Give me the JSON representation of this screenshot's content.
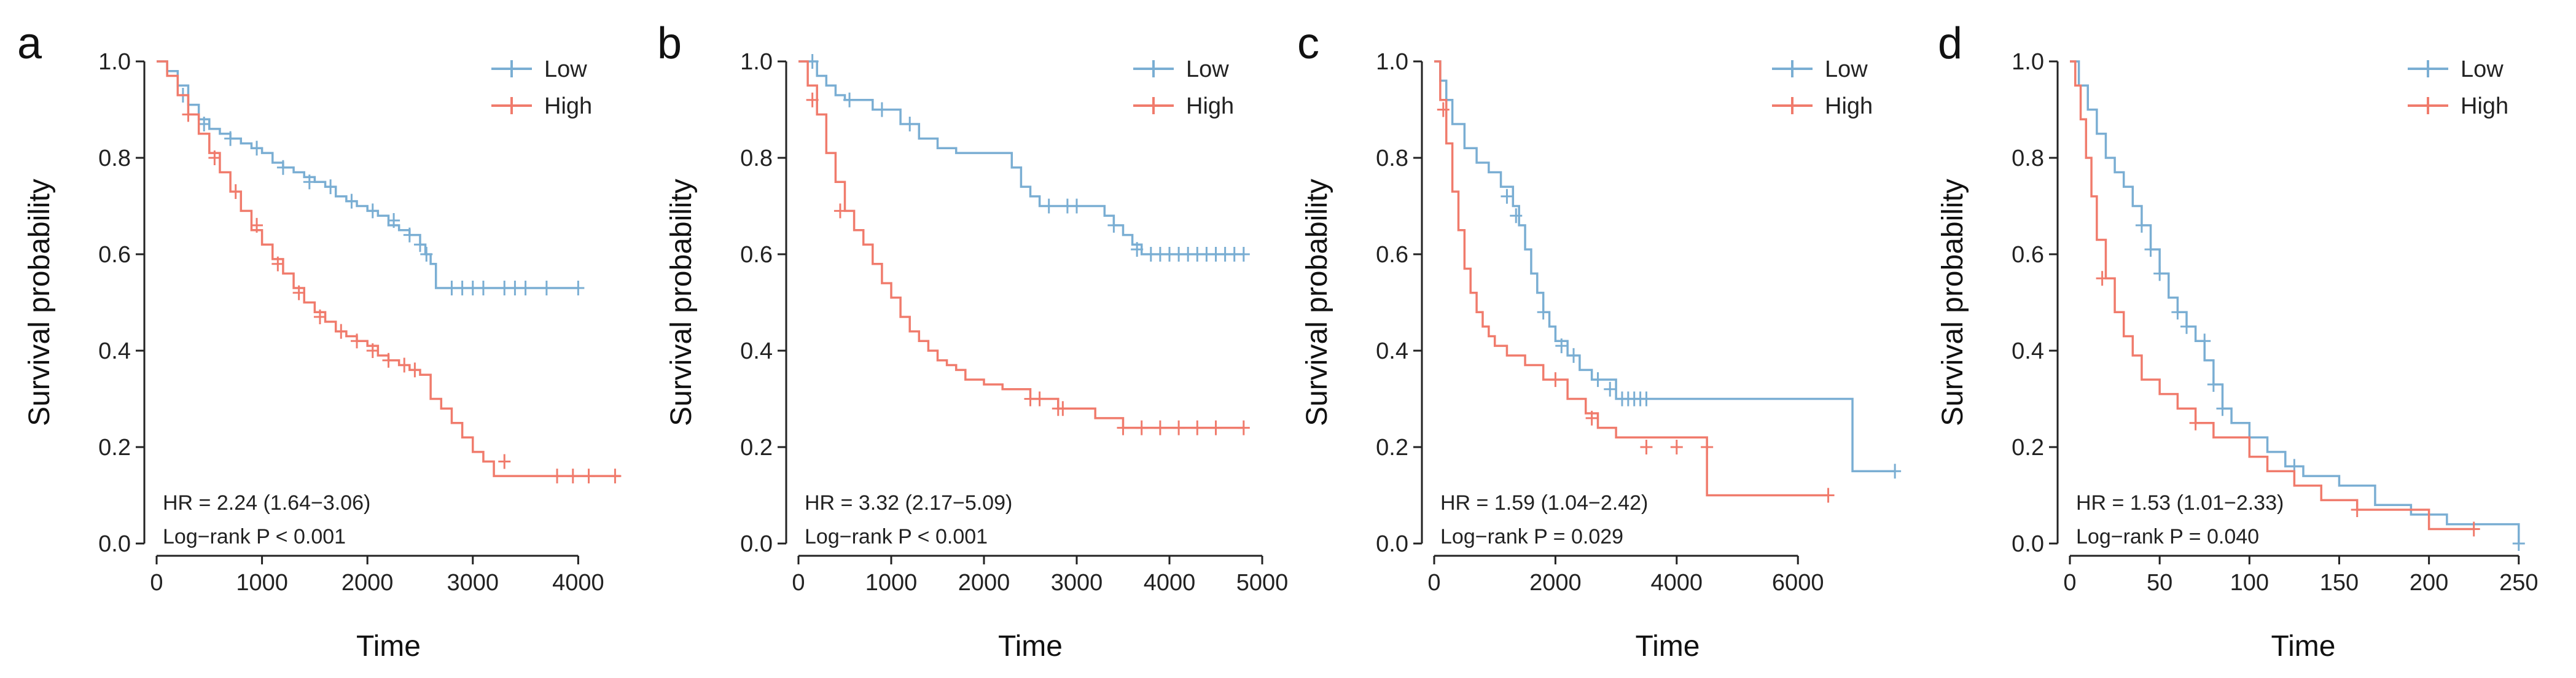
{
  "colors": {
    "low": "#7aaed3",
    "high": "#f07b6c",
    "axis": "#222222"
  },
  "chart_data": [
    {
      "type": "line",
      "panel": "a",
      "xlabel": "Time",
      "ylabel": "Survival probability",
      "xlim": [
        0,
        4400
      ],
      "ylim": [
        0,
        1
      ],
      "xticks": [
        0,
        1000,
        2000,
        3000,
        4000
      ],
      "xtick_labels": [
        "0",
        "1000",
        "2000",
        "3000",
        "4000"
      ],
      "yticks": [
        0,
        0.2,
        0.4,
        0.6,
        0.8,
        1.0
      ],
      "ytick_labels": [
        "0.0",
        "0.2",
        "0.4",
        "0.6",
        "0.8",
        "1.0"
      ],
      "legend": [
        "Low",
        "High"
      ],
      "legend_position": "top-right",
      "annotations": [
        "HR = 2.24 (1.64−3.06)",
        "Log−rank P < 0.001"
      ],
      "series": [
        {
          "name": "Low",
          "x": [
            0,
            100,
            200,
            300,
            400,
            500,
            600,
            700,
            800,
            900,
            1000,
            1100,
            1200,
            1300,
            1400,
            1500,
            1600,
            1700,
            1800,
            1900,
            2000,
            2100,
            2200,
            2300,
            2400,
            2500,
            2550,
            2600,
            2650,
            4000
          ],
          "y": [
            1.0,
            0.98,
            0.95,
            0.91,
            0.88,
            0.86,
            0.85,
            0.84,
            0.83,
            0.82,
            0.81,
            0.79,
            0.78,
            0.77,
            0.76,
            0.75,
            0.74,
            0.72,
            0.71,
            0.7,
            0.69,
            0.68,
            0.66,
            0.65,
            0.64,
            0.62,
            0.6,
            0.58,
            0.53,
            0.53
          ],
          "censor_x": [
            250,
            450,
            700,
            950,
            1200,
            1450,
            1650,
            1850,
            2050,
            2250,
            2400,
            2500,
            2560,
            2800,
            2900,
            3000,
            3100,
            3300,
            3400,
            3500,
            3700,
            4000
          ],
          "censor_y": [
            0.93,
            0.87,
            0.84,
            0.82,
            0.78,
            0.75,
            0.74,
            0.71,
            0.69,
            0.67,
            0.64,
            0.62,
            0.6,
            0.53,
            0.53,
            0.53,
            0.53,
            0.53,
            0.53,
            0.53,
            0.53,
            0.53
          ]
        },
        {
          "name": "High",
          "x": [
            0,
            100,
            200,
            300,
            400,
            500,
            600,
            700,
            800,
            900,
            1000,
            1100,
            1200,
            1300,
            1400,
            1500,
            1600,
            1700,
            1800,
            1900,
            2000,
            2100,
            2200,
            2300,
            2400,
            2500,
            2600,
            2700,
            2800,
            2900,
            3000,
            3100,
            3200,
            4400
          ],
          "y": [
            1.0,
            0.97,
            0.93,
            0.89,
            0.85,
            0.81,
            0.77,
            0.73,
            0.69,
            0.65,
            0.62,
            0.59,
            0.56,
            0.53,
            0.5,
            0.48,
            0.46,
            0.44,
            0.43,
            0.42,
            0.41,
            0.39,
            0.38,
            0.37,
            0.36,
            0.35,
            0.3,
            0.28,
            0.25,
            0.22,
            0.19,
            0.17,
            0.14,
            0.14
          ],
          "censor_x": [
            300,
            550,
            750,
            950,
            1150,
            1350,
            1550,
            1750,
            1900,
            2050,
            2200,
            2350,
            2450,
            3300,
            3800,
            3950,
            4100,
            4350
          ],
          "censor_y": [
            0.89,
            0.8,
            0.73,
            0.66,
            0.58,
            0.52,
            0.47,
            0.44,
            0.42,
            0.4,
            0.38,
            0.37,
            0.36,
            0.17,
            0.14,
            0.14,
            0.14,
            0.14
          ]
        }
      ]
    },
    {
      "type": "line",
      "panel": "b",
      "xlabel": "Time",
      "ylabel": "Survival probability",
      "xlim": [
        0,
        5000
      ],
      "ylim": [
        0,
        1
      ],
      "xticks": [
        0,
        1000,
        2000,
        3000,
        4000,
        5000
      ],
      "xtick_labels": [
        "0",
        "1000",
        "2000",
        "3000",
        "4000",
        "5000"
      ],
      "yticks": [
        0,
        0.2,
        0.4,
        0.6,
        0.8,
        1.0
      ],
      "ytick_labels": [
        "0.0",
        "0.2",
        "0.4",
        "0.6",
        "0.8",
        "1.0"
      ],
      "legend": [
        "Low",
        "High"
      ],
      "legend_position": "top-right",
      "annotations": [
        "HR = 3.32 (2.17−5.09)",
        "Log−rank P < 0.001"
      ],
      "series": [
        {
          "name": "Low",
          "x": [
            0,
            200,
            300,
            400,
            500,
            800,
            1100,
            1300,
            1500,
            1700,
            2300,
            2400,
            2500,
            2600,
            3300,
            3400,
            3500,
            3600,
            3700,
            4800
          ],
          "y": [
            1.0,
            0.97,
            0.95,
            0.93,
            0.92,
            0.9,
            0.87,
            0.84,
            0.82,
            0.81,
            0.78,
            0.74,
            0.72,
            0.7,
            0.68,
            0.66,
            0.64,
            0.62,
            0.6,
            0.6
          ],
          "censor_x": [
            150,
            550,
            900,
            1200,
            2700,
            2900,
            3000,
            3400,
            3650,
            3800,
            3900,
            4000,
            4100,
            4200,
            4300,
            4400,
            4500,
            4600,
            4700,
            4800
          ],
          "censor_y": [
            1.0,
            0.92,
            0.9,
            0.87,
            0.7,
            0.7,
            0.7,
            0.66,
            0.61,
            0.6,
            0.6,
            0.6,
            0.6,
            0.6,
            0.6,
            0.6,
            0.6,
            0.6,
            0.6,
            0.6
          ]
        },
        {
          "name": "High",
          "x": [
            0,
            100,
            200,
            300,
            400,
            500,
            600,
            700,
            800,
            900,
            1000,
            1100,
            1200,
            1300,
            1400,
            1500,
            1600,
            1700,
            1800,
            2000,
            2200,
            2500,
            2800,
            3200,
            3500,
            4800
          ],
          "y": [
            1.0,
            0.95,
            0.89,
            0.81,
            0.75,
            0.69,
            0.65,
            0.62,
            0.58,
            0.54,
            0.51,
            0.47,
            0.44,
            0.42,
            0.4,
            0.38,
            0.37,
            0.36,
            0.34,
            0.33,
            0.32,
            0.3,
            0.28,
            0.26,
            0.24,
            0.24
          ],
          "censor_x": [
            150,
            450,
            2500,
            2600,
            2800,
            2850,
            3500,
            3700,
            3900,
            4100,
            4300,
            4500,
            4800
          ],
          "censor_y": [
            0.92,
            0.69,
            0.3,
            0.3,
            0.28,
            0.28,
            0.24,
            0.24,
            0.24,
            0.24,
            0.24,
            0.24,
            0.24
          ]
        }
      ]
    },
    {
      "type": "line",
      "panel": "c",
      "xlabel": "Time",
      "ylabel": "Survival probability",
      "xlim": [
        0,
        7700
      ],
      "ylim": [
        0,
        1
      ],
      "xticks": [
        0,
        2000,
        4000,
        6000
      ],
      "xtick_labels": [
        "0",
        "2000",
        "4000",
        "6000"
      ],
      "yticks": [
        0,
        0.2,
        0.4,
        0.6,
        0.8,
        1.0
      ],
      "ytick_labels": [
        "0.0",
        "0.2",
        "0.4",
        "0.6",
        "0.8",
        "1.0"
      ],
      "legend": [
        "Low",
        "High"
      ],
      "legend_position": "top-right",
      "annotations": [
        "HR = 1.59 (1.04−2.42)",
        "Log−rank P = 0.029"
      ],
      "series": [
        {
          "name": "Low",
          "x": [
            0,
            100,
            200,
            300,
            500,
            700,
            900,
            1100,
            1300,
            1400,
            1500,
            1600,
            1700,
            1800,
            1900,
            2000,
            2200,
            2400,
            2600,
            3000,
            6900,
            7600
          ],
          "y": [
            1.0,
            0.96,
            0.92,
            0.87,
            0.82,
            0.79,
            0.77,
            0.74,
            0.7,
            0.66,
            0.61,
            0.56,
            0.52,
            0.48,
            0.45,
            0.42,
            0.39,
            0.36,
            0.34,
            0.3,
            0.15,
            0.15
          ],
          "censor_x": [
            1200,
            1350,
            1800,
            2100,
            2300,
            2700,
            2900,
            3100,
            3200,
            3300,
            3400,
            3500,
            7600
          ],
          "censor_y": [
            0.72,
            0.68,
            0.48,
            0.41,
            0.39,
            0.34,
            0.32,
            0.3,
            0.3,
            0.3,
            0.3,
            0.3,
            0.15
          ]
        },
        {
          "name": "High",
          "x": [
            0,
            100,
            200,
            300,
            400,
            500,
            600,
            700,
            800,
            900,
            1000,
            1200,
            1500,
            1800,
            2200,
            2500,
            2700,
            3000,
            4500,
            6500
          ],
          "y": [
            1.0,
            0.92,
            0.83,
            0.73,
            0.65,
            0.57,
            0.52,
            0.48,
            0.45,
            0.43,
            0.41,
            0.39,
            0.37,
            0.34,
            0.3,
            0.27,
            0.24,
            0.22,
            0.1,
            0.1
          ],
          "censor_x": [
            150,
            2000,
            2600,
            3500,
            4000,
            4500,
            6500
          ],
          "censor_y": [
            0.9,
            0.34,
            0.26,
            0.2,
            0.2,
            0.2,
            0.1
          ]
        }
      ]
    },
    {
      "type": "line",
      "panel": "d",
      "xlabel": "Time",
      "ylabel": "Survival probability",
      "xlim": [
        0,
        260
      ],
      "ylim": [
        0,
        1
      ],
      "xticks": [
        0,
        50,
        100,
        150,
        200,
        250
      ],
      "xtick_labels": [
        "0",
        "50",
        "100",
        "150",
        "200",
        "250"
      ],
      "yticks": [
        0,
        0.2,
        0.4,
        0.6,
        0.8,
        1.0
      ],
      "ytick_labels": [
        "0.0",
        "0.2",
        "0.4",
        "0.6",
        "0.8",
        "1.0"
      ],
      "legend": [
        "Low",
        "High"
      ],
      "legend_position": "top-right",
      "annotations": [
        "HR = 1.53 (1.01−2.33)",
        "Log−rank P = 0.040"
      ],
      "series": [
        {
          "name": "Low",
          "x": [
            0,
            5,
            10,
            15,
            20,
            25,
            30,
            35,
            40,
            45,
            50,
            55,
            60,
            65,
            70,
            75,
            80,
            85,
            90,
            100,
            110,
            120,
            130,
            150,
            170,
            190,
            210,
            250
          ],
          "y": [
            1.0,
            0.95,
            0.9,
            0.85,
            0.8,
            0.77,
            0.74,
            0.7,
            0.66,
            0.61,
            0.56,
            0.51,
            0.48,
            0.45,
            0.42,
            0.38,
            0.33,
            0.28,
            0.25,
            0.22,
            0.19,
            0.16,
            0.14,
            0.12,
            0.08,
            0.06,
            0.04,
            0.0
          ],
          "censor_x": [
            40,
            45,
            50,
            60,
            65,
            75,
            80,
            85,
            125,
            250
          ],
          "censor_y": [
            0.66,
            0.61,
            0.56,
            0.48,
            0.45,
            0.42,
            0.33,
            0.28,
            0.16,
            0.0
          ]
        },
        {
          "name": "High",
          "x": [
            0,
            3,
            6,
            9,
            12,
            15,
            20,
            25,
            30,
            35,
            40,
            50,
            60,
            70,
            80,
            100,
            110,
            125,
            140,
            160,
            200,
            225
          ],
          "y": [
            1.0,
            0.95,
            0.88,
            0.8,
            0.72,
            0.63,
            0.55,
            0.48,
            0.43,
            0.39,
            0.34,
            0.31,
            0.28,
            0.25,
            0.22,
            0.18,
            0.15,
            0.12,
            0.09,
            0.07,
            0.03,
            0.03
          ],
          "censor_x": [
            18,
            70,
            160,
            225
          ],
          "censor_y": [
            0.55,
            0.25,
            0.07,
            0.03
          ]
        }
      ]
    }
  ]
}
